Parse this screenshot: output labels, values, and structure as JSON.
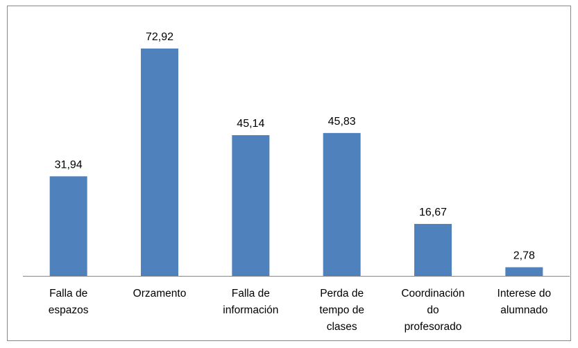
{
  "chart_data": {
    "type": "bar",
    "categories": [
      "Falla de espazos",
      "Orzamento",
      "Falla de información",
      "Perda de tempo de clases",
      "Coordinación do profesorado",
      "Interese do alumnado"
    ],
    "values": [
      31.94,
      72.92,
      45.14,
      45.83,
      16.67,
      2.78
    ],
    "value_labels": [
      "31,94",
      "72,92",
      "45,14",
      "45,83",
      "16,67",
      "2,78"
    ],
    "color": "#4f81bd"
  }
}
